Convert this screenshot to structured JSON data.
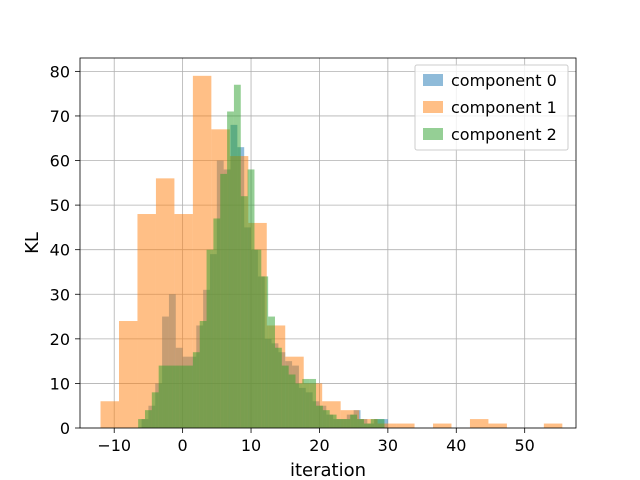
{
  "chart_data": {
    "type": "histogram",
    "title": "",
    "xlabel": "iteration",
    "ylabel": "KL",
    "xlim": [
      -15,
      57.5
    ],
    "ylim": [
      0,
      83
    ],
    "xticks": [
      -10,
      0,
      10,
      20,
      30,
      40,
      50
    ],
    "yticks": [
      0,
      10,
      20,
      30,
      40,
      50,
      60,
      70,
      80
    ],
    "grid": true,
    "legend_position": "top-right",
    "series": [
      {
        "name": "component 0",
        "color": "#1f77b4",
        "opacity": 0.5,
        "bins": [
          [
            -6,
            -5,
            2
          ],
          [
            -5,
            -4,
            5
          ],
          [
            -4,
            -3,
            10
          ],
          [
            -3,
            -2,
            25
          ],
          [
            -2,
            -1,
            30
          ],
          [
            -1,
            0,
            18
          ],
          [
            0,
            1,
            16
          ],
          [
            1,
            2,
            16
          ],
          [
            2,
            3,
            23
          ],
          [
            3,
            4,
            31
          ],
          [
            4,
            5,
            39
          ],
          [
            5,
            6,
            60
          ],
          [
            6,
            7,
            58
          ],
          [
            7,
            8,
            68
          ],
          [
            8,
            9,
            63
          ],
          [
            9,
            10,
            45
          ],
          [
            10,
            11,
            40
          ],
          [
            11,
            12,
            34
          ],
          [
            12,
            13,
            20
          ],
          [
            13,
            14,
            19
          ],
          [
            14,
            15,
            17
          ],
          [
            15,
            16,
            15
          ],
          [
            16,
            17,
            14
          ],
          [
            17,
            18,
            9
          ],
          [
            18,
            19,
            8
          ],
          [
            19,
            20,
            6
          ],
          [
            20,
            21,
            5
          ],
          [
            21,
            22,
            3
          ],
          [
            22,
            23,
            2
          ],
          [
            23,
            24,
            2
          ],
          [
            24,
            25,
            3
          ],
          [
            25,
            26,
            4
          ],
          [
            26,
            27,
            2
          ],
          [
            27,
            28,
            1
          ],
          [
            28,
            29,
            2
          ],
          [
            29,
            30,
            2
          ]
        ]
      },
      {
        "name": "component 1",
        "color": "#ff7f0e",
        "opacity": 0.5,
        "bins": [
          [
            -12,
            -9.3,
            6
          ],
          [
            -9.3,
            -6.6,
            24
          ],
          [
            -6.6,
            -3.9,
            48
          ],
          [
            -3.9,
            -1.2,
            56
          ],
          [
            -1.2,
            1.5,
            48
          ],
          [
            1.5,
            4.2,
            79
          ],
          [
            4.2,
            6.9,
            67
          ],
          [
            6.9,
            9.6,
            61
          ],
          [
            9.6,
            12.3,
            46
          ],
          [
            12.3,
            15.0,
            23
          ],
          [
            15.0,
            17.7,
            16
          ],
          [
            17.7,
            20.4,
            10
          ],
          [
            20.4,
            23.1,
            6
          ],
          [
            23.1,
            25.8,
            4
          ],
          [
            25.8,
            28.5,
            2
          ],
          [
            28.5,
            31.2,
            1
          ],
          [
            31.2,
            33.9,
            1
          ],
          [
            33.9,
            36.6,
            0
          ],
          [
            36.6,
            39.3,
            1
          ],
          [
            39.3,
            42.0,
            0
          ],
          [
            42.0,
            44.7,
            2
          ],
          [
            44.7,
            47.4,
            1
          ],
          [
            47.4,
            50.1,
            0
          ],
          [
            50.1,
            52.8,
            0
          ],
          [
            52.8,
            55.5,
            1
          ]
        ]
      },
      {
        "name": "component 2",
        "color": "#2ca02c",
        "opacity": 0.5,
        "bins": [
          [
            -6.5,
            -5.5,
            2
          ],
          [
            -5.5,
            -4.5,
            4
          ],
          [
            -4.5,
            -3.5,
            8
          ],
          [
            -3.5,
            -2.5,
            14
          ],
          [
            -2.5,
            -1.5,
            14
          ],
          [
            -1.5,
            -0.5,
            14
          ],
          [
            -0.5,
            0.5,
            14
          ],
          [
            0.5,
            1.5,
            14
          ],
          [
            1.5,
            2.5,
            17
          ],
          [
            2.5,
            3.5,
            24
          ],
          [
            3.5,
            4.5,
            40
          ],
          [
            4.5,
            5.5,
            47
          ],
          [
            5.5,
            6.5,
            57
          ],
          [
            6.5,
            7.5,
            71
          ],
          [
            7.5,
            8.5,
            77
          ],
          [
            8.5,
            9.5,
            52
          ],
          [
            9.5,
            10.5,
            58
          ],
          [
            10.5,
            11.5,
            40
          ],
          [
            11.5,
            12.5,
            34
          ],
          [
            12.5,
            13.5,
            25
          ],
          [
            13.5,
            14.5,
            18
          ],
          [
            14.5,
            15.5,
            14
          ],
          [
            15.5,
            16.5,
            12
          ],
          [
            16.5,
            17.5,
            10
          ],
          [
            17.5,
            18.5,
            11
          ],
          [
            18.5,
            19.5,
            11
          ],
          [
            19.5,
            20.5,
            5
          ],
          [
            20.5,
            21.5,
            4
          ],
          [
            21.5,
            22.5,
            3
          ],
          [
            22.5,
            23.5,
            2
          ],
          [
            23.5,
            24.5,
            2
          ],
          [
            24.5,
            25.5,
            3
          ],
          [
            25.5,
            26.5,
            2
          ],
          [
            26.5,
            27.5,
            1
          ],
          [
            27.5,
            28.5,
            2
          ],
          [
            28.5,
            29.5,
            2
          ]
        ]
      }
    ]
  }
}
